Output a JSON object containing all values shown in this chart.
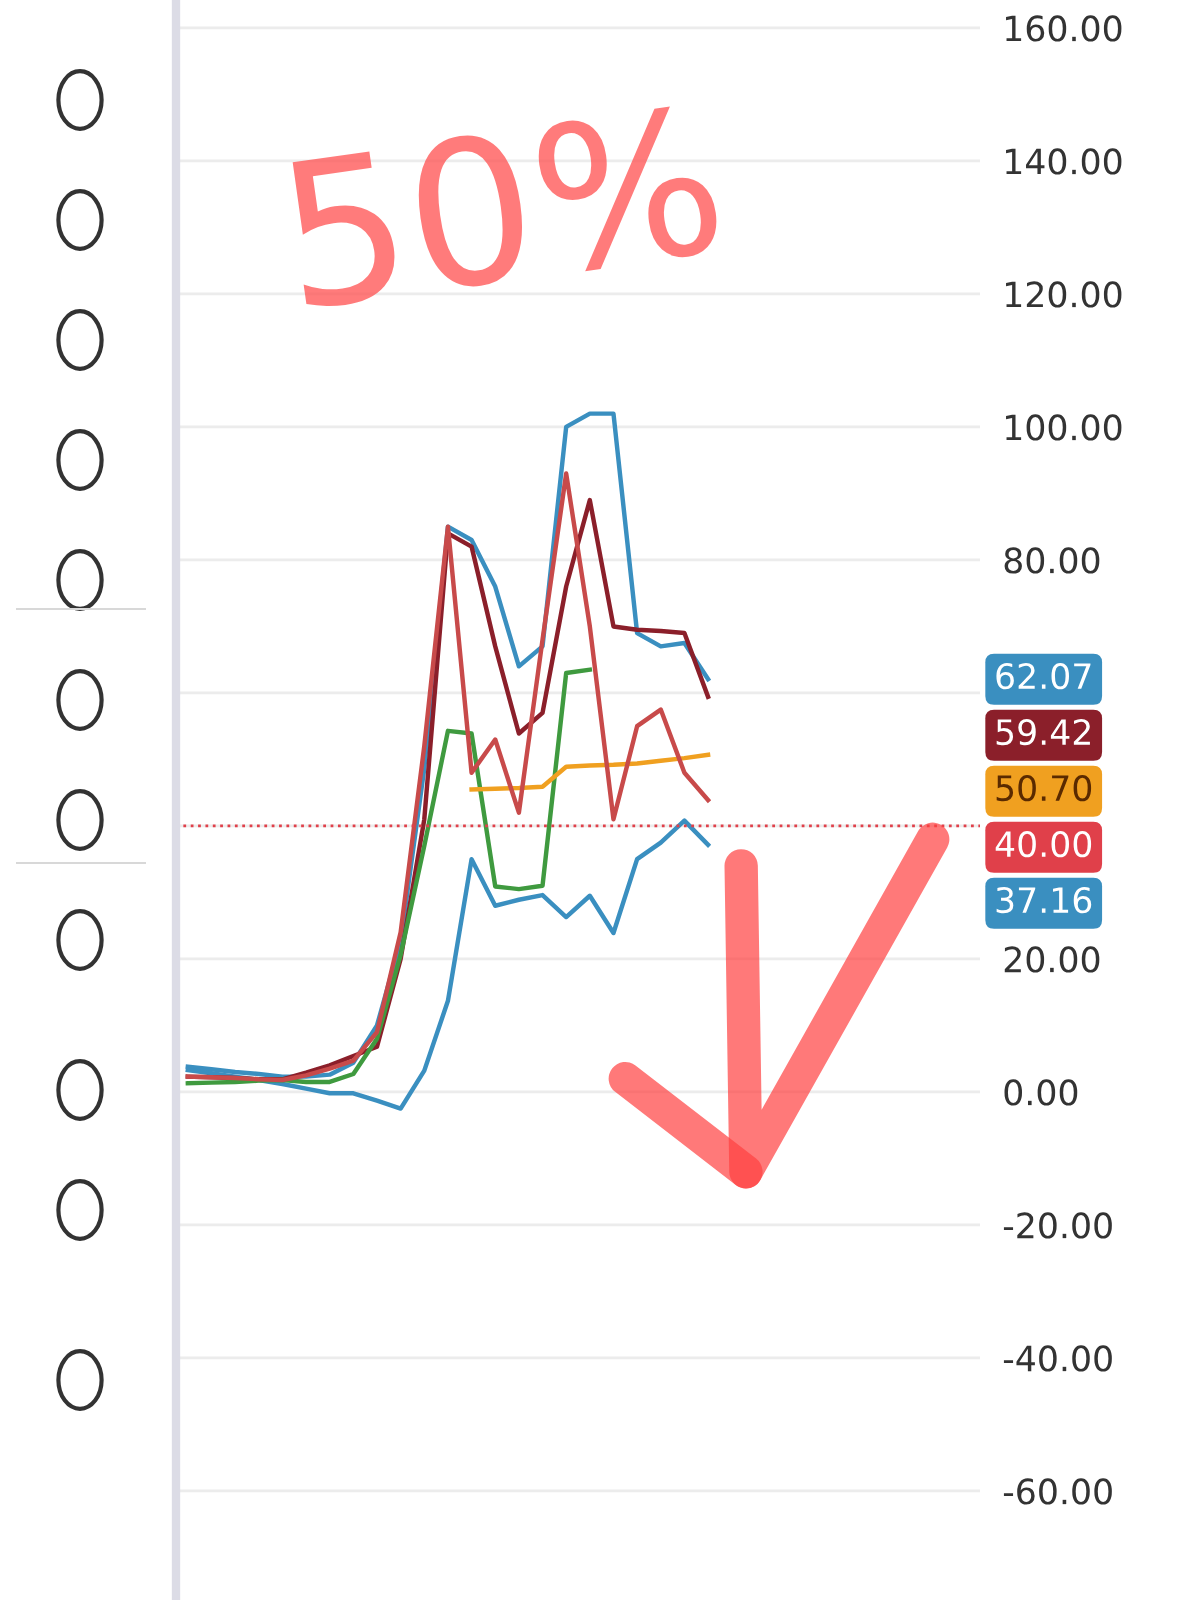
{
  "chart_data": {
    "type": "line",
    "categories": [
      null,
      null,
      null,
      null,
      null,
      null,
      null,
      null,
      null,
      null,
      null,
      null,
      null,
      null,
      null,
      null,
      null,
      null,
      null,
      null,
      null,
      null,
      null,
      null,
      null,
      null,
      null,
      null,
      null,
      null,
      null,
      null,
      null,
      null
    ],
    "ylim": [
      -76.4,
      164.2
    ],
    "yticks": [
      {
        "value": -60,
        "label": "-60.00"
      },
      {
        "value": -40,
        "label": "-40.00"
      },
      {
        "value": -20,
        "label": "-20.00"
      },
      {
        "value": 0,
        "label": "0.00"
      },
      {
        "value": 20,
        "label": "20.00"
      },
      {
        "value": 40,
        "label": null
      },
      {
        "value": 60,
        "label": null
      },
      {
        "value": 80,
        "label": "80.00"
      },
      {
        "value": 100,
        "label": "100.00"
      },
      {
        "value": 120,
        "label": "120.00"
      },
      {
        "value": 140,
        "label": "140.00"
      },
      {
        "value": 160,
        "label": "160.00"
      }
    ],
    "tick_labels": "y",
    "grid": "y",
    "line_style": "solid",
    "series": [
      {
        "color": "#3a8fc0",
        "values": [
          3.8,
          3.4,
          3.0,
          2.7,
          2.3,
          2.3,
          2.6,
          4.4,
          10,
          22.7,
          48.7,
          85,
          83,
          76,
          64,
          67,
          100,
          102,
          102,
          69,
          67,
          67.5,
          62.07,
          null,
          null,
          null,
          null,
          null,
          null,
          null,
          null,
          null,
          null,
          null
        ]
      },
      {
        "color": "#3a8fc0",
        "values": [
          3.3,
          2.8,
          2.3,
          1.8,
          1.2,
          0.5,
          -0.2,
          -0.2,
          -1.3,
          -2.5,
          3.2,
          13.7,
          35,
          28,
          28.9,
          29.6,
          26.3,
          29.5,
          23.9,
          35,
          37.5,
          40.8,
          37.16,
          null,
          null,
          null,
          null,
          null,
          null,
          null,
          null,
          null,
          null,
          null
        ]
      },
      {
        "color": "#8b1f2a",
        "values": [
          2.3,
          2.2,
          2.1,
          1.9,
          1.9,
          2.9,
          4.0,
          5.4,
          6.8,
          20,
          41,
          84,
          82,
          67,
          53.9,
          57,
          76,
          89,
          70,
          69.5,
          69.3,
          69,
          59.42,
          null,
          null,
          null,
          null,
          null,
          null,
          null,
          null,
          null,
          null,
          null
        ]
      },
      {
        "color": "#3f9a3f",
        "values": [
          1.3,
          1.4,
          1.5,
          1.7,
          1.8,
          1.5,
          1.5,
          2.7,
          8,
          20.6,
          37,
          54.3,
          53.9,
          30.9,
          30.5,
          31,
          63,
          63.5,
          null,
          null,
          null,
          null,
          null,
          null,
          null,
          null,
          null,
          null,
          null,
          null,
          null,
          null,
          null,
          null
        ]
      },
      {
        "color": "#f0a020",
        "values": [
          null,
          null,
          null,
          null,
          null,
          null,
          null,
          null,
          null,
          null,
          null,
          null,
          45.5,
          45.6,
          45.7,
          45.9,
          48.9,
          49.1,
          49.2,
          49.4,
          49.8,
          50.2,
          50.7,
          null,
          null,
          null,
          null,
          null,
          null,
          null,
          null,
          null,
          null,
          null
        ]
      },
      {
        "color": "#c84a4a",
        "values": [
          2.3,
          2.2,
          2.1,
          1.9,
          1.8,
          2.5,
          3.5,
          4.7,
          9,
          24,
          52,
          85,
          48,
          53,
          42,
          68,
          93,
          70,
          41,
          55,
          57.5,
          48,
          43.9,
          null,
          null,
          null,
          null,
          null,
          null,
          null,
          null,
          null,
          null,
          null
        ]
      }
    ],
    "ref_lines": [
      {
        "axis": "y",
        "value": 40,
        "label": "40.00",
        "color": "#e0404a",
        "line_style": "dotted"
      }
    ],
    "annotations": [
      "62.07",
      "59.42",
      "50.70",
      "37.16",
      "50%"
    ]
  }
}
